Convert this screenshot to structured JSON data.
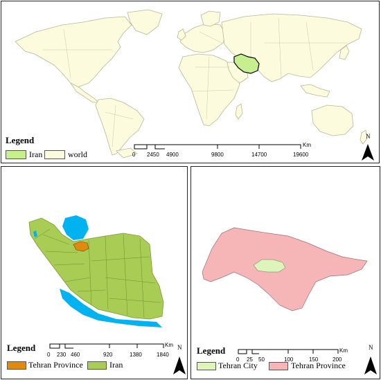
{
  "colors": {
    "land": "#fdfbdd",
    "border": "#b9b796",
    "iran_highlight": "#c7ee8f",
    "ocean_blue": "#00b3f0",
    "iran_green": "#a9cc55",
    "tehran_orange": "#e08a10",
    "tehran_province_pink": "#f6b6b8",
    "tehran_city_green": "#ddf5bb"
  },
  "world_map": {
    "legend_title": "Legend",
    "legend_items": [
      {
        "label": "Iran",
        "color": "#c7ee8f"
      },
      {
        "label": "world",
        "color": "#fdfbdd"
      }
    ],
    "scale_unit": "Km",
    "scale_ticks": [
      "0",
      "2450",
      "4900",
      "9800",
      "14700",
      "19600"
    ],
    "north_label": "N"
  },
  "iran_map": {
    "legend_title": "Legend",
    "legend_items": [
      {
        "label": "Tehran Province",
        "color": "#e08a10"
      },
      {
        "label": "Iran",
        "color": "#a9cc55"
      }
    ],
    "scale_unit": "Km",
    "scale_ticks": [
      "0",
      "230",
      "460",
      "920",
      "1380",
      "1840"
    ],
    "north_label": "N"
  },
  "tehran_map": {
    "legend_title": "Legend",
    "legend_items": [
      {
        "label": "Tehran City",
        "color": "#ddf5bb"
      },
      {
        "label": "Tehran Province",
        "color": "#f6b6b8"
      }
    ],
    "scale_unit": "Km",
    "scale_ticks": [
      "0",
      "25",
      "50",
      "100",
      "150",
      "200"
    ],
    "north_label": "N"
  }
}
